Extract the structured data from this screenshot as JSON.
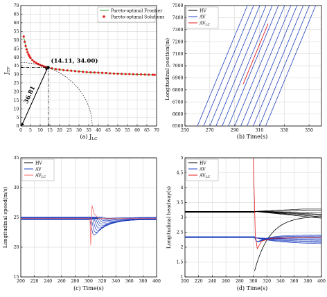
{
  "chart_data": [
    {
      "type": "scatter",
      "caption": "(a) J",
      "caption_sub": "LC",
      "ylabel": "J",
      "ylabel_sub": "TF",
      "xlim": [
        0,
        70
      ],
      "ylim": [
        0,
        70
      ],
      "xticks": [
        0,
        5,
        10,
        15,
        20,
        25,
        30,
        35,
        40,
        45,
        50,
        55,
        60,
        65,
        70
      ],
      "yticks": [
        0,
        5,
        10,
        15,
        20,
        25,
        30,
        35,
        40,
        45,
        50,
        55,
        60,
        65,
        70
      ],
      "grid": true,
      "legend": {
        "position": "top-right",
        "entries": [
          "Pareto-optimal Frontier",
          "Pareto-optimal Solutions"
        ]
      },
      "colors": {
        "frontier": "#2ca02c",
        "solutions": "#e41a1c"
      },
      "series": [
        {
          "name": "Pareto-optimal Solutions",
          "x": [
            1.5,
            2,
            2.5,
            3,
            3.5,
            4,
            4.5,
            5,
            6,
            7,
            8,
            9,
            10,
            11,
            12,
            13,
            14.11,
            16,
            18,
            20,
            22,
            24,
            26,
            28,
            30,
            32,
            34,
            36,
            38,
            40,
            42,
            44,
            46,
            48,
            50,
            52,
            54,
            56,
            58,
            60,
            62,
            64,
            66,
            68,
            69
          ],
          "y": [
            52,
            49,
            46.5,
            44.5,
            42.8,
            41.5,
            40.5,
            39.6,
            38.3,
            37.3,
            36.6,
            36,
            35.4,
            35,
            34.6,
            34.3,
            34,
            33.5,
            33.1,
            32.8,
            32.5,
            32.3,
            32.1,
            31.9,
            31.7,
            31.5,
            31.3,
            31.2,
            31.1,
            31,
            30.9,
            30.8,
            30.6,
            30.5,
            30.4,
            30.3,
            30.2,
            30.2,
            30.1,
            30,
            30,
            29.9,
            29.8,
            29.8,
            29.7
          ]
        }
      ],
      "annotations": [
        {
          "text": "(14.11, 34.00)",
          "x": 14.11,
          "y": 34.0
        },
        {
          "text": "36.81",
          "type": "radius"
        }
      ],
      "circle_radius": 36.81
    },
    {
      "type": "line",
      "caption": "(b) Time(s)",
      "ylabel": "Longitudinal position(m)",
      "xlim": [
        250,
        360
      ],
      "ylim": [
        6500,
        7500
      ],
      "xticks": [
        250,
        270,
        290,
        310,
        330,
        350
      ],
      "yticks": [
        6500,
        6600,
        6700,
        6800,
        6900,
        7000,
        7100,
        7200,
        7300,
        7400,
        7500
      ],
      "grid": true,
      "legend": {
        "position": "top-left",
        "entries": [
          "HV",
          "AV",
          "AV"
        ],
        "entry_sub": [
          "",
          "",
          "LC"
        ]
      },
      "colors": {
        "HV": "#000000",
        "AV": "#1f3fbf",
        "AVLC": "#e41a1c"
      },
      "speed_mps": 24.8,
      "trajectories": {
        "x_at_6500": [
          260,
          265,
          270,
          275,
          280,
          285,
          290,
          295,
          300,
          305,
          310,
          315
        ],
        "types": [
          "AV",
          "AV",
          "AV",
          "AV",
          "AV",
          "AV",
          "AV",
          "AV",
          "AV",
          "AV",
          "AV",
          "AV"
        ],
        "lc": {
          "x0": 297,
          "y0": 6850,
          "x1": 317,
          "y1": 7350
        }
      }
    },
    {
      "type": "line",
      "caption": "(c) Time(s)",
      "ylabel": "Longitudinal speed(m/s)",
      "xlim": [
        200,
        400
      ],
      "ylim": [
        15,
        35
      ],
      "xticks": [
        200,
        220,
        240,
        260,
        280,
        300,
        320,
        340,
        360,
        380,
        400
      ],
      "yticks": [
        15,
        20,
        25,
        30,
        35
      ],
      "grid": true,
      "legend": {
        "position": "top-left",
        "entries": [
          "HV",
          "AV",
          "AV"
        ],
        "entry_sub": [
          "",
          "",
          "LC"
        ]
      },
      "colors": {
        "HV": "#000000",
        "AV": "#1f3fbf",
        "AVLC": "#ff6b6b"
      },
      "base_speed": 24.8,
      "event_time": 303,
      "av_dips": [
        4.5,
        3.6,
        2.9,
        2.3,
        1.8,
        1.4,
        1.0,
        0.7,
        0.45,
        0.25
      ],
      "lc_peak": 27.0,
      "lc_min": 20.3
    },
    {
      "type": "line",
      "caption": "(d) Time(s)",
      "ylabel": "Longitudinal headway(s)",
      "xlim": [
        200,
        400
      ],
      "ylim": [
        1,
        5
      ],
      "xticks": [
        200,
        220,
        240,
        260,
        280,
        300,
        320,
        340,
        360,
        380,
        400
      ],
      "yticks": [
        1,
        1.5,
        2,
        2.5,
        3,
        3.5,
        4,
        4.5,
        5
      ],
      "grid": true,
      "legend": {
        "position": "top-left",
        "entries": [
          "HV",
          "AV",
          "AV"
        ],
        "entry_sub": [
          "",
          "",
          "LC"
        ]
      },
      "colors": {
        "HV": "#000000",
        "AV": "#1f3fbf",
        "AVLC": "#e41a1c"
      },
      "hv_base": 3.2,
      "av_base": 2.32,
      "event_time": 302,
      "hv_final": [
        3.28,
        3.22,
        3.15,
        3.1,
        3.05,
        2.98,
        2.9
      ],
      "av_final": [
        2.42,
        2.38,
        2.35,
        2.3,
        2.26,
        2.22,
        2.18,
        2.14,
        2.1
      ]
    }
  ]
}
